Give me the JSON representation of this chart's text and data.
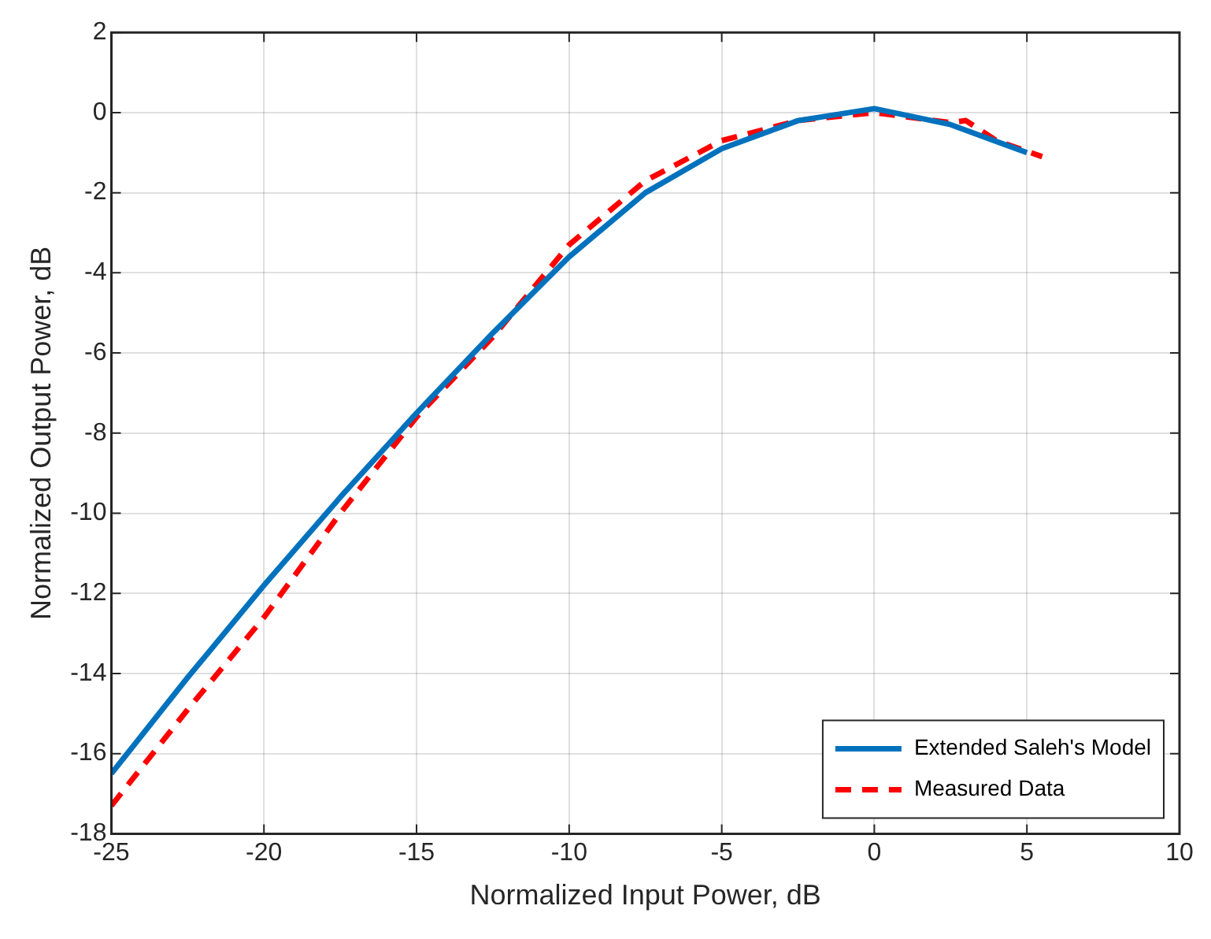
{
  "chart_data": {
    "type": "line",
    "xlabel": "Normalized Input Power, dB",
    "ylabel": "Normalized Output Power, dB",
    "xlim": [
      -25,
      10
    ],
    "xticks": [
      -25,
      -20,
      -15,
      -10,
      -5,
      0,
      5,
      10
    ],
    "ylim": [
      -18,
      2
    ],
    "yticks": [
      -18,
      -16,
      -14,
      -12,
      -10,
      -8,
      -6,
      -4,
      -2,
      0,
      2
    ],
    "grid": true,
    "legend": "bottom right",
    "marker": "none",
    "series": [
      {
        "name": "Extended Saleh's Model",
        "color": "#0072bd",
        "line_style": "solid",
        "x": [
          -25,
          -22.5,
          -20,
          -17.5,
          -15,
          -12.5,
          -10,
          -7.5,
          -5,
          -2.5,
          0,
          2.5,
          5
        ],
        "values": [
          -16.5,
          -14.1,
          -11.8,
          -9.6,
          -7.5,
          -5.5,
          -3.6,
          -2.0,
          -0.9,
          -0.2,
          0.1,
          -0.3,
          -1.0
        ]
      },
      {
        "name": "Measured Data",
        "color": "#ff0000",
        "line_style": "dashed",
        "x": [
          -25,
          -22.5,
          -20,
          -17.5,
          -15,
          -12.5,
          -10,
          -7.5,
          -5,
          -2.5,
          0,
          2.5,
          3,
          4,
          5.5
        ],
        "values": [
          -17.3,
          -14.9,
          -12.6,
          -10.0,
          -7.6,
          -5.6,
          -3.3,
          -1.7,
          -0.7,
          -0.2,
          0.0,
          -0.25,
          -0.2,
          -0.7,
          -1.1
        ]
      }
    ]
  }
}
